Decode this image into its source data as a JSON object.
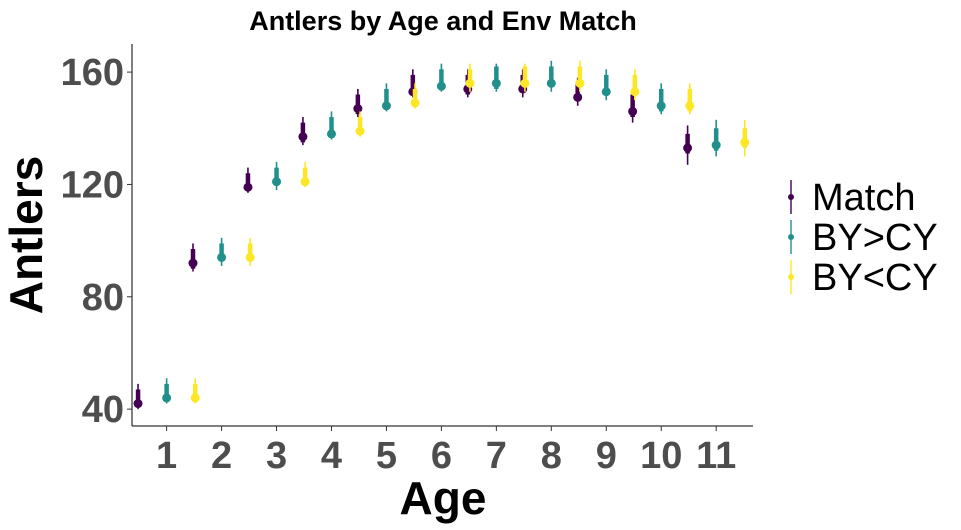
{
  "chart_data": {
    "type": "pointrange",
    "title": "Antlers by Age and Env Match",
    "xlabel": "Age",
    "ylabel": "Antlers",
    "categories": [
      "1",
      "2",
      "3",
      "4",
      "5",
      "6",
      "7",
      "8",
      "9",
      "10",
      "11"
    ],
    "ylim": [
      34,
      170
    ],
    "yticks": [
      40,
      80,
      120,
      160
    ],
    "grid": false,
    "legend_position": "right",
    "series": [
      {
        "name": "Match",
        "color": "#440154",
        "values": [
          42,
          92,
          119,
          137,
          147,
          153,
          154,
          154,
          151,
          146,
          133
        ],
        "inner_low": [
          41,
          90,
          118,
          135,
          145,
          152,
          152,
          153,
          150,
          144,
          131
        ],
        "inner_high": [
          47,
          97,
          124,
          142,
          152,
          159,
          159,
          159,
          156,
          152,
          138
        ],
        "outer_low": [
          40,
          89,
          117,
          134,
          144,
          151,
          151,
          151,
          148,
          142,
          127
        ],
        "outer_high": [
          49,
          99,
          126,
          144,
          154,
          161,
          161,
          161,
          158,
          154,
          141
        ]
      },
      {
        "name": "BY>CY",
        "color": "#21908C",
        "values": [
          44,
          94,
          121,
          138,
          148,
          155,
          156,
          156,
          153,
          148,
          134
        ],
        "inner_low": [
          43,
          93,
          120,
          137,
          147,
          154,
          154,
          155,
          152,
          146,
          132
        ],
        "inner_high": [
          49,
          99,
          126,
          144,
          154,
          161,
          162,
          162,
          159,
          154,
          140
        ],
        "outer_low": [
          42,
          91,
          118,
          136,
          146,
          153,
          153,
          153,
          150,
          145,
          130
        ],
        "outer_high": [
          51,
          101,
          128,
          146,
          156,
          163,
          163,
          164,
          161,
          156,
          143
        ]
      },
      {
        "name": "BY<CY",
        "color": "#FDE725",
        "values": [
          44,
          94,
          121,
          139,
          149,
          156,
          156,
          156,
          153,
          148,
          135
        ],
        "inner_low": [
          43,
          93,
          120,
          138,
          148,
          155,
          155,
          155,
          152,
          146,
          133
        ],
        "inner_high": [
          49,
          99,
          126,
          144,
          154,
          161,
          162,
          162,
          159,
          154,
          140
        ],
        "outer_low": [
          42,
          91,
          119,
          137,
          147,
          153,
          153,
          153,
          150,
          145,
          130
        ],
        "outer_high": [
          51,
          101,
          128,
          146,
          156,
          163,
          163,
          164,
          161,
          156,
          143
        ]
      }
    ]
  }
}
